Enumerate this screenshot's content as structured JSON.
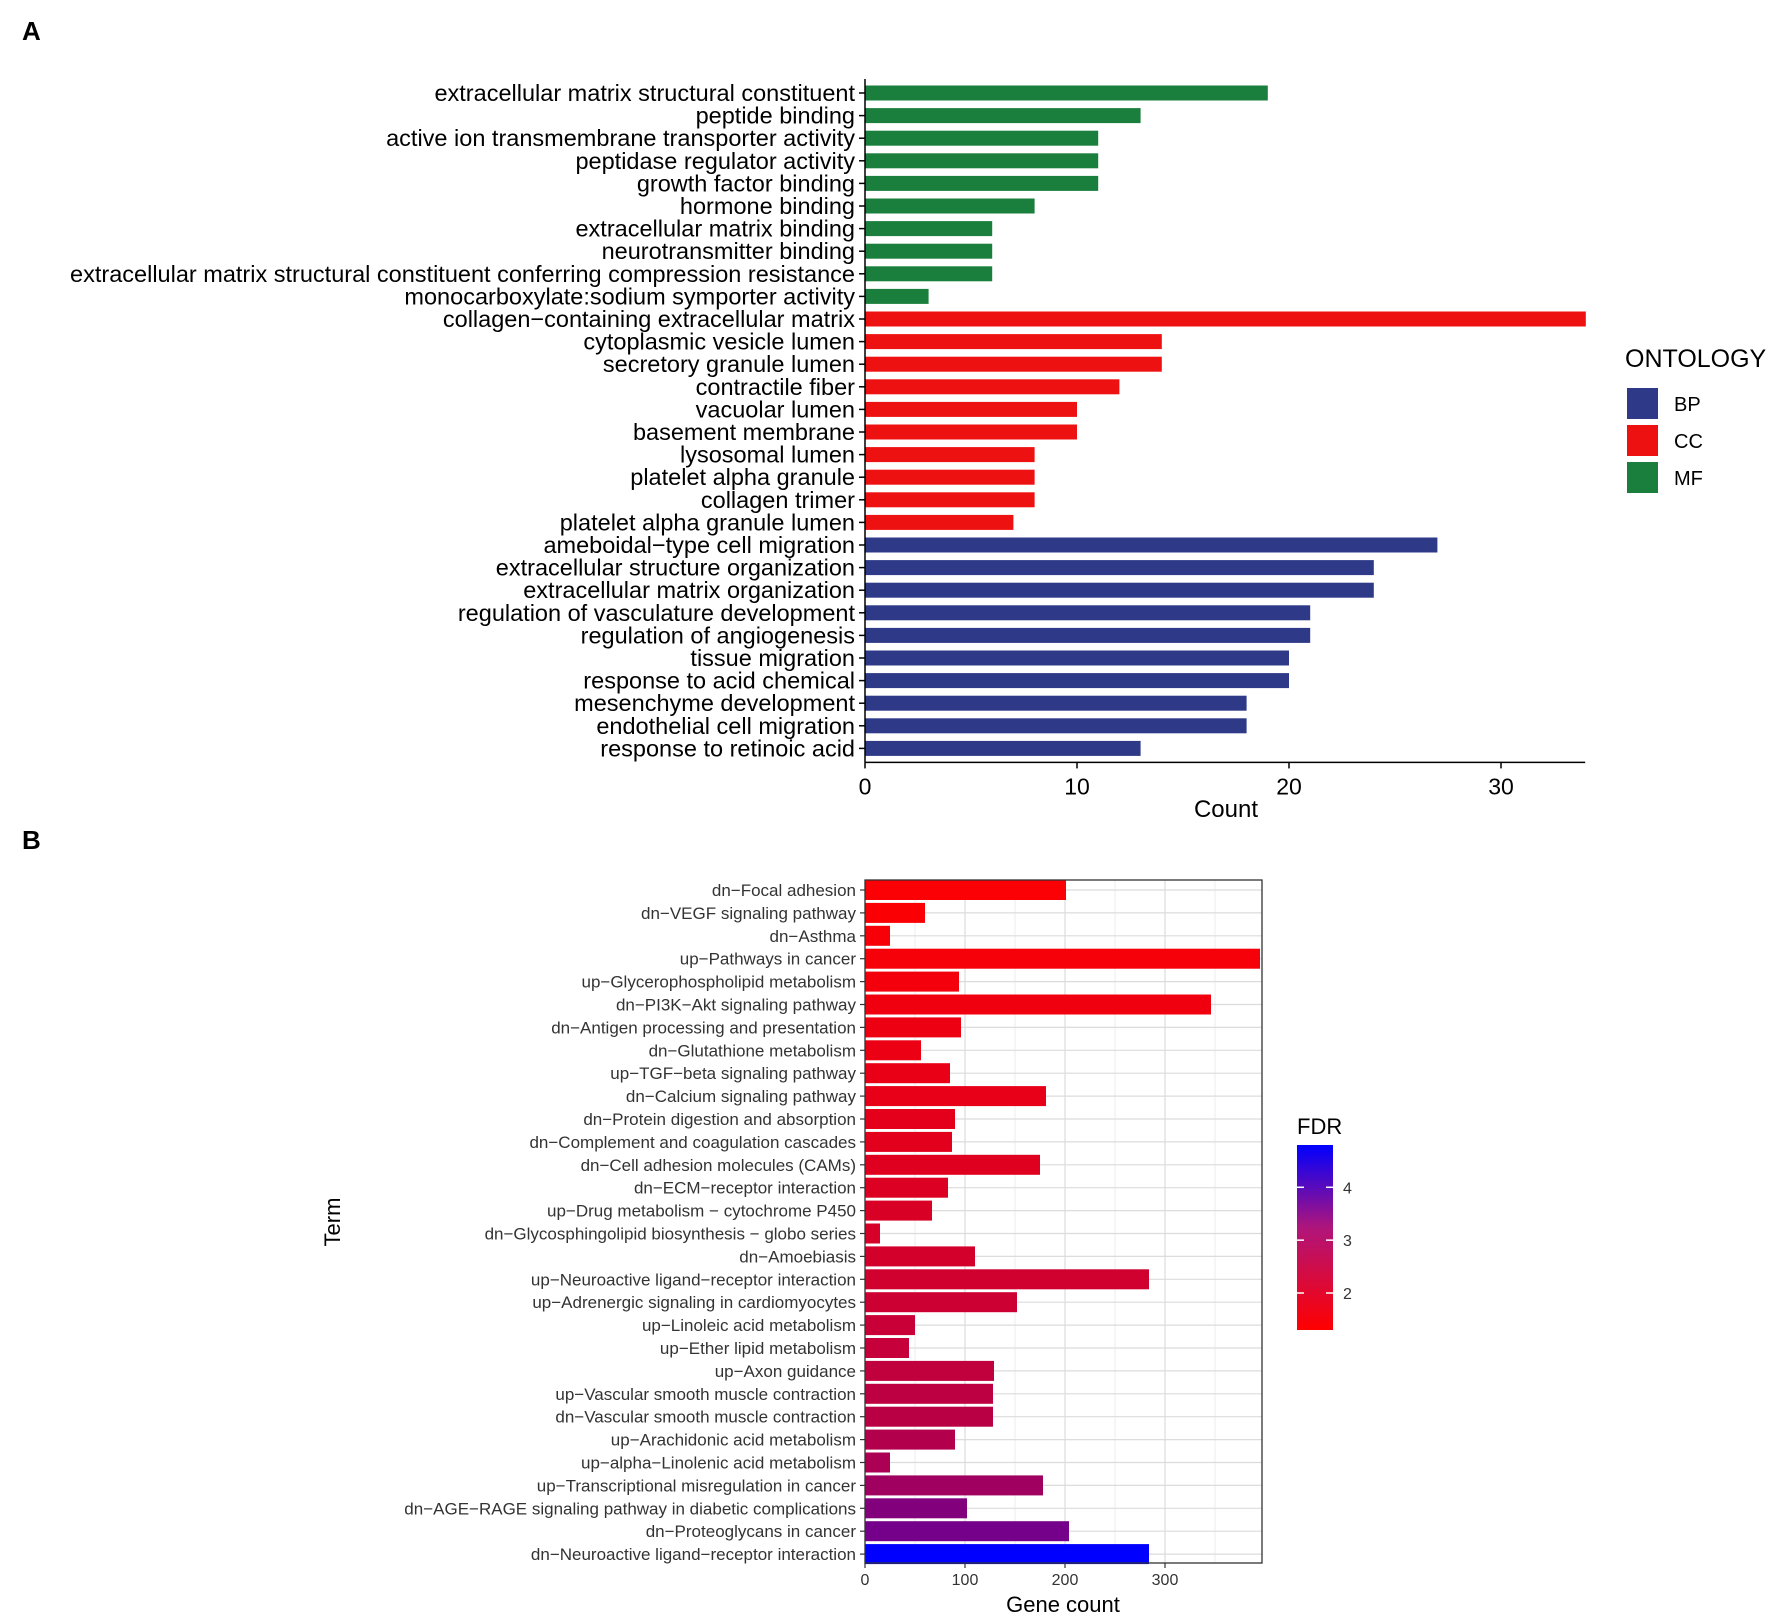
{
  "chart_data": [
    {
      "panel": "A",
      "type": "bar",
      "orientation": "horizontal",
      "xlabel": "Count",
      "ylabel": "",
      "xlim": [
        0,
        34
      ],
      "xticks": [
        "0",
        "10",
        "20",
        "30"
      ],
      "legend": {
        "title": "ONTOLOGY",
        "placement": "right",
        "entries": [
          {
            "label": "BP",
            "color": "#2E3A87"
          },
          {
            "label": "CC",
            "color": "#EE1111"
          },
          {
            "label": "MF",
            "color": "#1A7F3C"
          }
        ]
      },
      "rows": [
        {
          "term": "extracellular matrix structural constituent",
          "count": 19,
          "ontology": "MF"
        },
        {
          "term": "peptide binding",
          "count": 13,
          "ontology": "MF"
        },
        {
          "term": "active ion transmembrane transporter activity",
          "count": 11,
          "ontology": "MF"
        },
        {
          "term": "peptidase regulator activity",
          "count": 11,
          "ontology": "MF"
        },
        {
          "term": "growth factor binding",
          "count": 11,
          "ontology": "MF"
        },
        {
          "term": "hormone binding",
          "count": 8,
          "ontology": "MF"
        },
        {
          "term": "extracellular matrix binding",
          "count": 6,
          "ontology": "MF"
        },
        {
          "term": "neurotransmitter binding",
          "count": 6,
          "ontology": "MF"
        },
        {
          "term": "extracellular matrix structural constituent conferring compression resistance",
          "count": 6,
          "ontology": "MF"
        },
        {
          "term": "monocarboxylate:sodium symporter activity",
          "count": 3,
          "ontology": "MF"
        },
        {
          "term": "collagen−containing extracellular matrix",
          "count": 34,
          "ontology": "CC"
        },
        {
          "term": "cytoplasmic vesicle lumen",
          "count": 14,
          "ontology": "CC"
        },
        {
          "term": "secretory granule lumen",
          "count": 14,
          "ontology": "CC"
        },
        {
          "term": "contractile fiber",
          "count": 12,
          "ontology": "CC"
        },
        {
          "term": "vacuolar lumen",
          "count": 10,
          "ontology": "CC"
        },
        {
          "term": "basement membrane",
          "count": 10,
          "ontology": "CC"
        },
        {
          "term": "lysosomal lumen",
          "count": 8,
          "ontology": "CC"
        },
        {
          "term": "platelet alpha granule",
          "count": 8,
          "ontology": "CC"
        },
        {
          "term": "collagen trimer",
          "count": 8,
          "ontology": "CC"
        },
        {
          "term": "platelet alpha granule lumen",
          "count": 7,
          "ontology": "CC"
        },
        {
          "term": "ameboidal−type cell migration",
          "count": 27,
          "ontology": "BP"
        },
        {
          "term": "extracellular structure organization",
          "count": 24,
          "ontology": "BP"
        },
        {
          "term": "extracellular matrix organization",
          "count": 24,
          "ontology": "BP"
        },
        {
          "term": "regulation of vasculature development",
          "count": 21,
          "ontology": "BP"
        },
        {
          "term": "regulation of angiogenesis",
          "count": 21,
          "ontology": "BP"
        },
        {
          "term": "tissue migration",
          "count": 20,
          "ontology": "BP"
        },
        {
          "term": "response to acid chemical",
          "count": 20,
          "ontology": "BP"
        },
        {
          "term": "mesenchyme development",
          "count": 18,
          "ontology": "BP"
        },
        {
          "term": "endothelial cell migration",
          "count": 18,
          "ontology": "BP"
        },
        {
          "term": "response to retinoic acid",
          "count": 13,
          "ontology": "BP"
        }
      ]
    },
    {
      "panel": "B",
      "type": "bar",
      "orientation": "horizontal",
      "xlabel": "Gene count",
      "ylabel": "Term",
      "xlim": [
        0,
        395
      ],
      "xticks": [
        "0",
        "100",
        "200",
        "300"
      ],
      "grid": true,
      "colorbar": {
        "title": "FDR",
        "placement": "right",
        "range": [
          1.3,
          4.8
        ],
        "ticks": [
          "2",
          "3",
          "4"
        ],
        "low_color": "#FF0000",
        "high_color": "#0000FF"
      },
      "rows": [
        {
          "term": "dn−Focal adhesion",
          "gene_count": 201,
          "fdr": 1.35
        },
        {
          "term": "dn−VEGF signaling pathway",
          "gene_count": 60,
          "fdr": 1.37
        },
        {
          "term": "dn−Asthma",
          "gene_count": 25,
          "fdr": 1.39
        },
        {
          "term": "up−Pathways in cancer",
          "gene_count": 395,
          "fdr": 1.42
        },
        {
          "term": "up−Glycerophospholipid metabolism",
          "gene_count": 94,
          "fdr": 1.46
        },
        {
          "term": "dn−PI3K−Akt signaling pathway",
          "gene_count": 346,
          "fdr": 1.5
        },
        {
          "term": "dn−Antigen processing and presentation",
          "gene_count": 96,
          "fdr": 1.55
        },
        {
          "term": "dn−Glutathione metabolism",
          "gene_count": 56,
          "fdr": 1.58
        },
        {
          "term": "up−TGF−beta signaling pathway",
          "gene_count": 85,
          "fdr": 1.6
        },
        {
          "term": "dn−Calcium signaling pathway",
          "gene_count": 181,
          "fdr": 1.63
        },
        {
          "term": "dn−Protein digestion and absorption",
          "gene_count": 90,
          "fdr": 1.67
        },
        {
          "term": "dn−Complement and coagulation cascades",
          "gene_count": 87,
          "fdr": 1.7
        },
        {
          "term": "dn−Cell adhesion molecules (CAMs)",
          "gene_count": 175,
          "fdr": 1.74
        },
        {
          "term": "dn−ECM−receptor interaction",
          "gene_count": 83,
          "fdr": 1.78
        },
        {
          "term": "up−Drug metabolism − cytochrome P450",
          "gene_count": 67,
          "fdr": 1.82
        },
        {
          "term": "dn−Glycosphingolipid biosynthesis − globo series",
          "gene_count": 15,
          "fdr": 1.85
        },
        {
          "term": "dn−Amoebiasis",
          "gene_count": 110,
          "fdr": 1.9
        },
        {
          "term": "up−Neuroactive ligand−receptor interaction",
          "gene_count": 284,
          "fdr": 1.95
        },
        {
          "term": "up−Adrenergic signaling in cardiomyocytes",
          "gene_count": 152,
          "fdr": 2.0
        },
        {
          "term": "up−Linoleic acid metabolism",
          "gene_count": 50,
          "fdr": 2.05
        },
        {
          "term": "up−Ether lipid metabolism",
          "gene_count": 44,
          "fdr": 2.1
        },
        {
          "term": "up−Axon guidance",
          "gene_count": 129,
          "fdr": 2.15
        },
        {
          "term": "up−Vascular smooth muscle contraction",
          "gene_count": 128,
          "fdr": 2.2
        },
        {
          "term": "dn−Vascular smooth muscle contraction",
          "gene_count": 128,
          "fdr": 2.25
        },
        {
          "term": "up−Arachidonic acid metabolism",
          "gene_count": 90,
          "fdr": 2.35
        },
        {
          "term": "up−alpha−Linolenic acid metabolism",
          "gene_count": 25,
          "fdr": 2.45
        },
        {
          "term": "up−Transcriptional misregulation in cancer",
          "gene_count": 178,
          "fdr": 2.6
        },
        {
          "term": "dn−AGE−RAGE signaling pathway in diabetic complications",
          "gene_count": 102,
          "fdr": 3.0
        },
        {
          "term": "dn−Proteoglycans in cancer",
          "gene_count": 204,
          "fdr": 3.2
        },
        {
          "term": "dn−Neuroactive ligand−receptor interaction",
          "gene_count": 284,
          "fdr": 4.8
        }
      ]
    }
  ],
  "panels": {
    "a_label": "A",
    "b_label": "B"
  }
}
